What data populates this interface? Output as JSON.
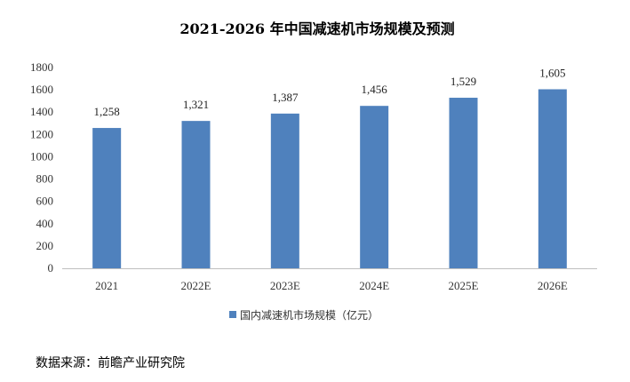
{
  "chart_data": {
    "type": "bar",
    "title": "2021-2026 年中国减速机市场规模及预测",
    "categories": [
      "2021",
      "2022E",
      "2023E",
      "2024E",
      "2025E",
      "2026E"
    ],
    "series": [
      {
        "name": "国内减速机市场规模（亿元）",
        "values": [
          1258,
          1321,
          1387,
          1456,
          1529,
          1605
        ],
        "labels": [
          "1,258",
          "1,321",
          "1,387",
          "1,456",
          "1,529",
          "1,605"
        ]
      }
    ],
    "ylim": [
      0,
      1800
    ],
    "yticks": [
      0,
      200,
      400,
      600,
      800,
      1000,
      1200,
      1400,
      1600,
      1800
    ],
    "grid": false,
    "legend_position": "bottom",
    "bar_color": "#4f81bd"
  },
  "source": "数据来源：前瞻产业研究院"
}
